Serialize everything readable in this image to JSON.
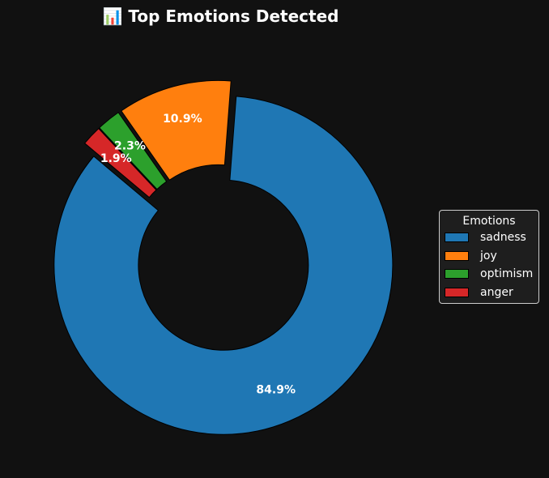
{
  "chart_data": {
    "type": "pie",
    "variant": "donut",
    "title": "📊 Top Emotions Detected",
    "categories": [
      "sadness",
      "joy",
      "optimism",
      "anger"
    ],
    "values": [
      84.9,
      10.9,
      2.3,
      1.9
    ],
    "value_labels": [
      "84.9%",
      "10.9%",
      "2.3%",
      "1.9%"
    ],
    "colors": [
      "#1f77b4",
      "#ff7f0e",
      "#2ca02c",
      "#d62728"
    ],
    "exploded": true,
    "legend": {
      "title": "Emotions",
      "placement": "center-right"
    }
  }
}
